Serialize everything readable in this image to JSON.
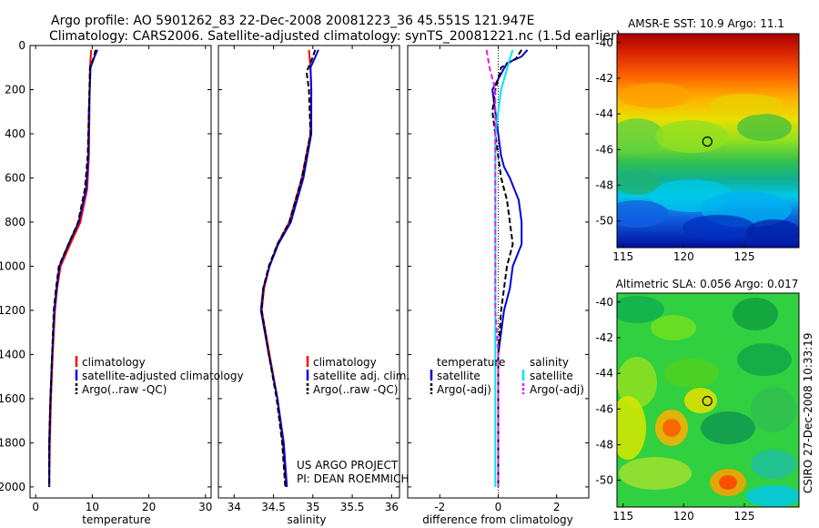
{
  "title_line1": "Argo profile: AO 5901262_83 22-Dec-2008 20081223_36 45.551S 121.947E",
  "title_line2": "Climatology: CARS2006. Satellite-adjusted climatology: synTS_20081221.nc (1.5d earlier)",
  "project_line1": "US ARGO PROJECT",
  "project_line2": "PI: DEAN ROEMMICH",
  "side_stamp": "CSIRO 27-Dec-2008 10:33:19",
  "colors": {
    "climatology": "#ff0000",
    "satellite": "#0000dd",
    "argo": "#000000",
    "salinity_satellite": "#00e5ee",
    "salinity_argo": "#e020e0"
  },
  "chart_data": [
    {
      "type": "line",
      "id": "temperature",
      "xlabel": "temperature",
      "ylabel": "depth",
      "xlim": [
        -1,
        31
      ],
      "ylim": [
        2050,
        0
      ],
      "xticks": [
        "0",
        "10",
        "20",
        "30"
      ],
      "xtick_values": [
        0,
        10,
        20,
        30
      ],
      "yticks": [
        "0",
        "200",
        "400",
        "600",
        "800",
        "1000",
        "1200",
        "1400",
        "1600",
        "1800",
        "2000"
      ],
      "ytick_values": [
        0,
        200,
        400,
        600,
        800,
        1000,
        1200,
        1400,
        1600,
        1800,
        2000
      ],
      "legend": [
        "climatology",
        "satellite-adjusted climatology",
        "Argo(..raw -QC)"
      ],
      "series": [
        {
          "name": "climatology",
          "color": "climatology",
          "dash": false,
          "points": [
            [
              9.8,
              20
            ],
            [
              9.6,
              100
            ],
            [
              9.5,
              300
            ],
            [
              9.4,
              500
            ],
            [
              9.1,
              650
            ],
            [
              7.9,
              800
            ],
            [
              6.1,
              900
            ],
            [
              4.4,
              1000
            ],
            [
              3.8,
              1100
            ],
            [
              3.4,
              1200
            ],
            [
              3.0,
              1400
            ],
            [
              2.7,
              1600
            ],
            [
              2.5,
              1800
            ],
            [
              2.4,
              2000
            ]
          ]
        },
        {
          "name": "satellite-adjusted climatology",
          "color": "satellite",
          "dash": false,
          "points": [
            [
              10.9,
              20
            ],
            [
              10.4,
              50
            ],
            [
              9.7,
              100
            ],
            [
              9.4,
              300
            ],
            [
              9.3,
              500
            ],
            [
              8.9,
              650
            ],
            [
              7.6,
              800
            ],
            [
              5.8,
              900
            ],
            [
              4.2,
              1000
            ],
            [
              3.7,
              1100
            ],
            [
              3.3,
              1200
            ],
            [
              2.9,
              1400
            ],
            [
              2.6,
              1600
            ],
            [
              2.4,
              1800
            ],
            [
              2.4,
              2000
            ]
          ]
        },
        {
          "name": "Argo(..raw -QC)",
          "color": "argo",
          "dash": true,
          "points": [
            [
              10.6,
              20
            ],
            [
              10.2,
              60
            ],
            [
              9.6,
              100
            ],
            [
              9.4,
              300
            ],
            [
              9.2,
              500
            ],
            [
              8.7,
              650
            ],
            [
              7.5,
              800
            ],
            [
              5.8,
              900
            ],
            [
              4.1,
              1000
            ],
            [
              3.6,
              1100
            ],
            [
              3.2,
              1200
            ],
            [
              2.9,
              1400
            ],
            [
              2.6,
              1600
            ],
            [
              2.4,
              1800
            ],
            [
              2.4,
              2000
            ]
          ]
        }
      ]
    },
    {
      "type": "line",
      "id": "salinity",
      "xlabel": "salinity",
      "xlim": [
        33.8,
        36.1
      ],
      "ylim": [
        2050,
        0
      ],
      "xticks": [
        "34",
        "34.5",
        "35",
        "35.5",
        "36"
      ],
      "xtick_values": [
        34,
        34.5,
        35,
        35.5,
        36
      ],
      "legend": [
        "climatology",
        "satellite adj. clim.",
        "Argo(..raw -QC)"
      ],
      "series": [
        {
          "name": "climatology",
          "color": "climatology",
          "dash": false,
          "points": [
            [
              34.95,
              20
            ],
            [
              34.97,
              100
            ],
            [
              34.98,
              200
            ],
            [
              34.97,
              400
            ],
            [
              34.86,
              600
            ],
            [
              34.7,
              800
            ],
            [
              34.55,
              900
            ],
            [
              34.45,
              1000
            ],
            [
              34.38,
              1100
            ],
            [
              34.35,
              1200
            ],
            [
              34.45,
              1400
            ],
            [
              34.55,
              1600
            ],
            [
              34.62,
              1800
            ],
            [
              34.66,
              2000
            ]
          ]
        },
        {
          "name": "satellite adj. clim.",
          "color": "satellite",
          "dash": false,
          "points": [
            [
              35.07,
              20
            ],
            [
              35.02,
              60
            ],
            [
              34.97,
              100
            ],
            [
              34.98,
              200
            ],
            [
              34.98,
              400
            ],
            [
              34.88,
              600
            ],
            [
              34.72,
              800
            ],
            [
              34.56,
              900
            ],
            [
              34.45,
              1000
            ],
            [
              34.37,
              1100
            ],
            [
              34.34,
              1200
            ],
            [
              34.44,
              1400
            ],
            [
              34.55,
              1600
            ],
            [
              34.63,
              1800
            ],
            [
              34.67,
              2000
            ]
          ]
        },
        {
          "name": "Argo(..raw -QC)",
          "color": "argo",
          "dash": true,
          "points": [
            [
              35.03,
              20
            ],
            [
              34.99,
              60
            ],
            [
              34.92,
              120
            ],
            [
              34.95,
              200
            ],
            [
              34.97,
              400
            ],
            [
              34.86,
              600
            ],
            [
              34.7,
              800
            ],
            [
              34.55,
              900
            ],
            [
              34.44,
              1000
            ],
            [
              34.37,
              1100
            ],
            [
              34.35,
              1200
            ],
            [
              34.44,
              1400
            ],
            [
              34.54,
              1600
            ],
            [
              34.61,
              1800
            ],
            [
              34.65,
              2000
            ]
          ]
        }
      ]
    },
    {
      "type": "line",
      "id": "difference",
      "xlabel": "difference from climatology",
      "xlim": [
        -3.1,
        3.1
      ],
      "ylim": [
        2050,
        0
      ],
      "xticks": [
        "-2",
        "0",
        "2"
      ],
      "xtick_values": [
        -2,
        0,
        2
      ],
      "legend_headers": [
        "temperature",
        "salinity"
      ],
      "legend": [
        "satellite",
        "Argo(-adj)",
        "satellite",
        "Argo(-adj)"
      ],
      "series": [
        {
          "name": "temperature satellite",
          "color": "satellite",
          "dash": false,
          "points": [
            [
              1.0,
              20
            ],
            [
              0.8,
              50
            ],
            [
              0.3,
              80
            ],
            [
              -0.2,
              200
            ],
            [
              -0.1,
              300
            ],
            [
              0.0,
              400
            ],
            [
              0.1,
              500
            ],
            [
              0.2,
              550
            ],
            [
              0.4,
              600
            ],
            [
              0.7,
              700
            ],
            [
              0.8,
              800
            ],
            [
              0.8,
              900
            ],
            [
              0.5,
              1000
            ],
            [
              0.4,
              1100
            ],
            [
              0.2,
              1200
            ],
            [
              0.0,
              1400
            ],
            [
              0.0,
              2000
            ]
          ]
        },
        {
          "name": "temperature Argo(-adj)",
          "color": "argo",
          "dash": true,
          "points": [
            [
              0.8,
              20
            ],
            [
              0.6,
              60
            ],
            [
              0.1,
              100
            ],
            [
              -0.1,
              200
            ],
            [
              -0.2,
              300
            ],
            [
              -0.1,
              400
            ],
            [
              0.0,
              500
            ],
            [
              0.1,
              600
            ],
            [
              0.3,
              700
            ],
            [
              0.4,
              800
            ],
            [
              0.5,
              900
            ],
            [
              0.3,
              1000
            ],
            [
              0.2,
              1100
            ],
            [
              0.1,
              1200
            ],
            [
              0.0,
              1400
            ],
            [
              0.0,
              2000
            ]
          ]
        },
        {
          "name": "salinity satellite",
          "color": "salinity_satellite",
          "dash": false,
          "points": [
            [
              0.5,
              20
            ],
            [
              0.4,
              60
            ],
            [
              0.1,
              200
            ],
            [
              -0.1,
              400
            ],
            [
              -0.1,
              600
            ],
            [
              -0.1,
              800
            ],
            [
              -0.1,
              1000
            ],
            [
              -0.1,
              1200
            ],
            [
              -0.1,
              1400
            ],
            [
              -0.1,
              1600
            ],
            [
              -0.1,
              2000
            ]
          ]
        },
        {
          "name": "salinity Argo(-adj)",
          "color": "salinity_argo",
          "dash": true,
          "points": [
            [
              -0.4,
              20
            ],
            [
              -0.3,
              100
            ],
            [
              -0.1,
              200
            ],
            [
              -0.1,
              400
            ],
            [
              -0.1,
              600
            ],
            [
              -0.1,
              800
            ],
            [
              -0.1,
              1000
            ],
            [
              -0.1,
              1200
            ],
            [
              0.0,
              1400
            ],
            [
              0.0,
              2000
            ]
          ]
        }
      ]
    },
    {
      "type": "heatmap",
      "id": "sst_map",
      "title": "AMSR-E SST: 10.9 Argo: 11.1",
      "xlim": [
        114.5,
        129.5
      ],
      "ylim": [
        -51.5,
        -39.5
      ],
      "xticks": [
        "115",
        "120",
        "125"
      ],
      "xtick_values": [
        115,
        120,
        125
      ],
      "yticks": [
        "-40",
        "-42",
        "-44",
        "-46",
        "-48",
        "-50"
      ],
      "ytick_values": [
        -40,
        -42,
        -44,
        -46,
        -48,
        -50
      ],
      "marker": [
        121.947,
        -45.551
      ]
    },
    {
      "type": "heatmap",
      "id": "sla_map",
      "title": "Altimetric SLA: 0.056 Argo: 0.017",
      "xlim": [
        114.5,
        129.5
      ],
      "ylim": [
        -51.5,
        -39.5
      ],
      "xticks": [
        "115",
        "120",
        "125"
      ],
      "xtick_values": [
        115,
        120,
        125
      ],
      "yticks": [
        "-40",
        "-42",
        "-44",
        "-46",
        "-48",
        "-50"
      ],
      "ytick_values": [
        -40,
        -42,
        -44,
        -46,
        -48,
        -50
      ],
      "marker": [
        121.947,
        -45.551
      ]
    }
  ]
}
